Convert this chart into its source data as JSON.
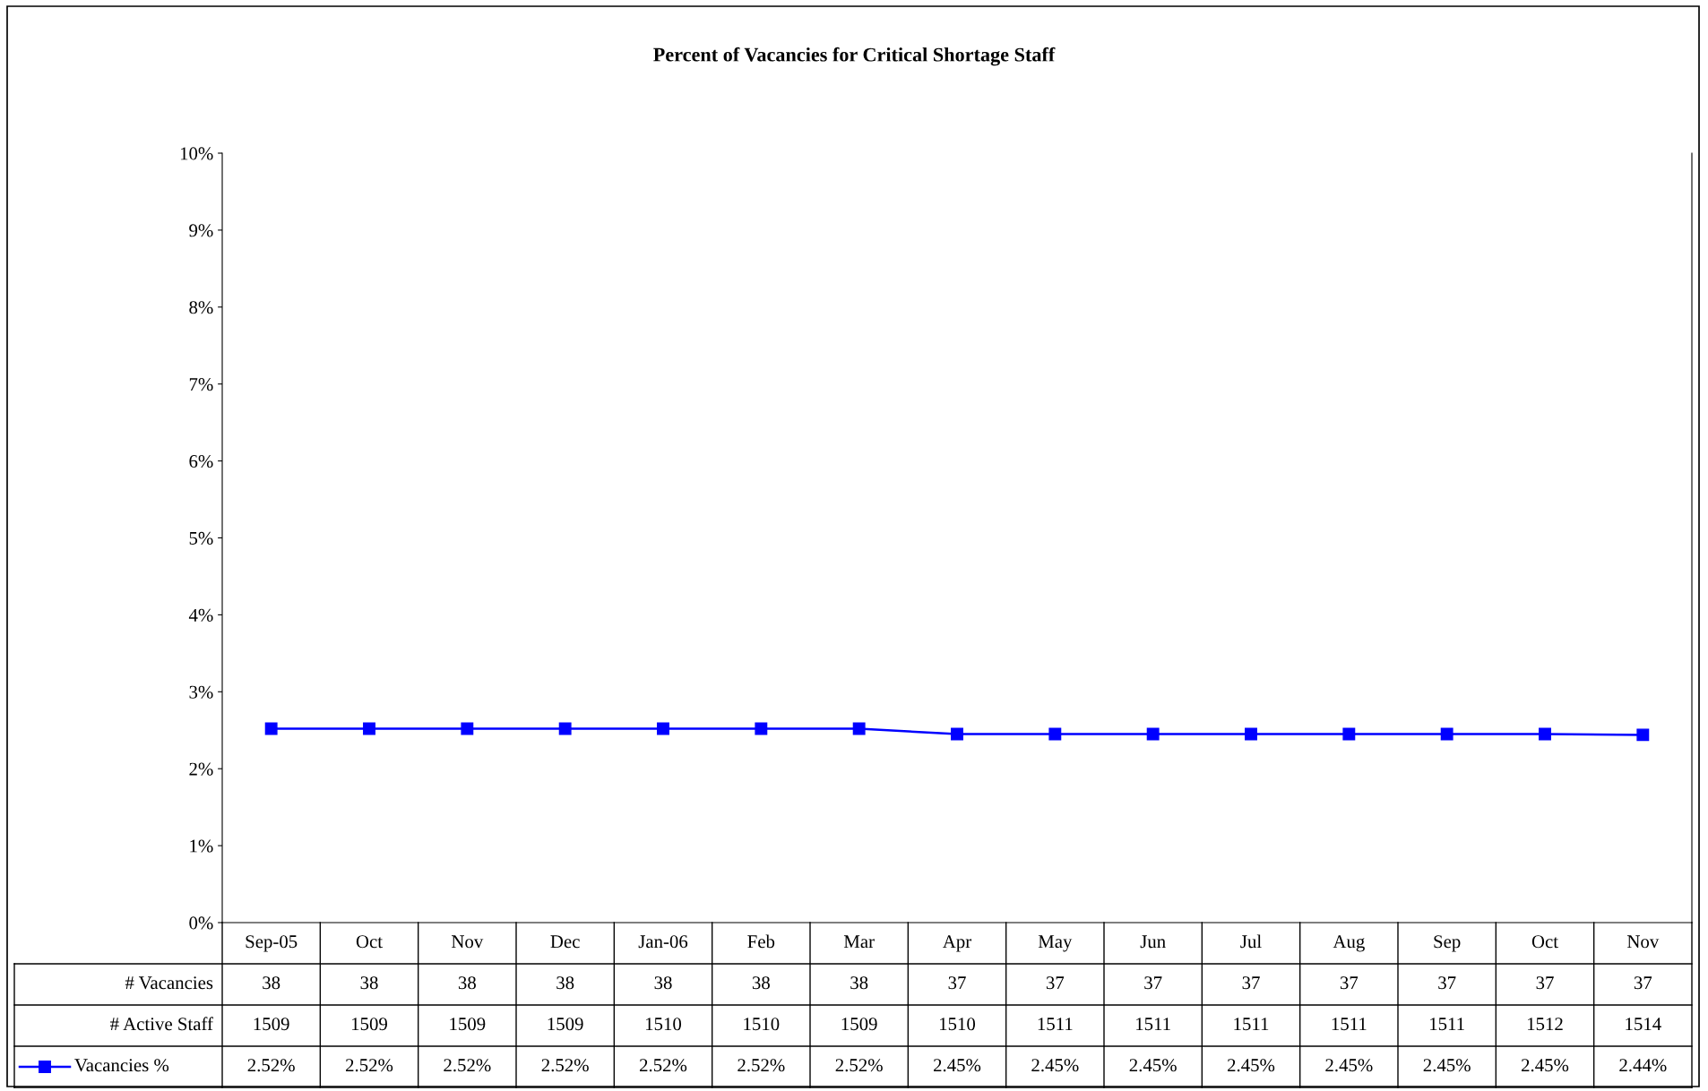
{
  "chart_data": {
    "type": "line",
    "title": "Percent of Vacancies for Critical Shortage Staff",
    "categories": [
      "Sep-05",
      "Oct",
      "Nov",
      "Dec",
      "Jan-06",
      "Feb",
      "Mar",
      "Apr",
      "May",
      "Jun",
      "Jul",
      "Aug",
      "Sep",
      "Oct",
      "Nov"
    ],
    "series": [
      {
        "name": "Vacancies %",
        "color": "#0000ff",
        "values": [
          2.52,
          2.52,
          2.52,
          2.52,
          2.52,
          2.52,
          2.52,
          2.45,
          2.45,
          2.45,
          2.45,
          2.45,
          2.45,
          2.45,
          2.44
        ],
        "value_labels": [
          "2.52%",
          "2.52%",
          "2.52%",
          "2.52%",
          "2.52%",
          "2.52%",
          "2.52%",
          "2.45%",
          "2.45%",
          "2.45%",
          "2.45%",
          "2.45%",
          "2.45%",
          "2.45%",
          "2.44%"
        ]
      }
    ],
    "annotations": [
      "# Vacancies",
      "38",
      "38",
      "38",
      "38",
      "38",
      "38",
      "38",
      "37",
      "37",
      "37",
      "37",
      "37",
      "37",
      "37",
      "37",
      "# Active Staff",
      "1509",
      "1509",
      "1509",
      "1509",
      "1510",
      "1510",
      "1509",
      "1510",
      "1511",
      "1511",
      "1511",
      "1511",
      "1511",
      "1512",
      "1514"
    ],
    "ylim": [
      0,
      10
    ],
    "yticks": [
      {
        "value": 0,
        "label": "0%"
      },
      {
        "value": 1,
        "label": "1%"
      },
      {
        "value": 2,
        "label": "2%"
      },
      {
        "value": 3,
        "label": "3%"
      },
      {
        "value": 4,
        "label": "4%"
      },
      {
        "value": 5,
        "label": "5%"
      },
      {
        "value": 6,
        "label": "6%"
      },
      {
        "value": 7,
        "label": "7%"
      },
      {
        "value": 8,
        "label": "8%"
      },
      {
        "value": 9,
        "label": "9%"
      },
      {
        "value": 10,
        "label": "10%"
      }
    ],
    "marker": "square",
    "grid": false,
    "legend": "bottom"
  }
}
